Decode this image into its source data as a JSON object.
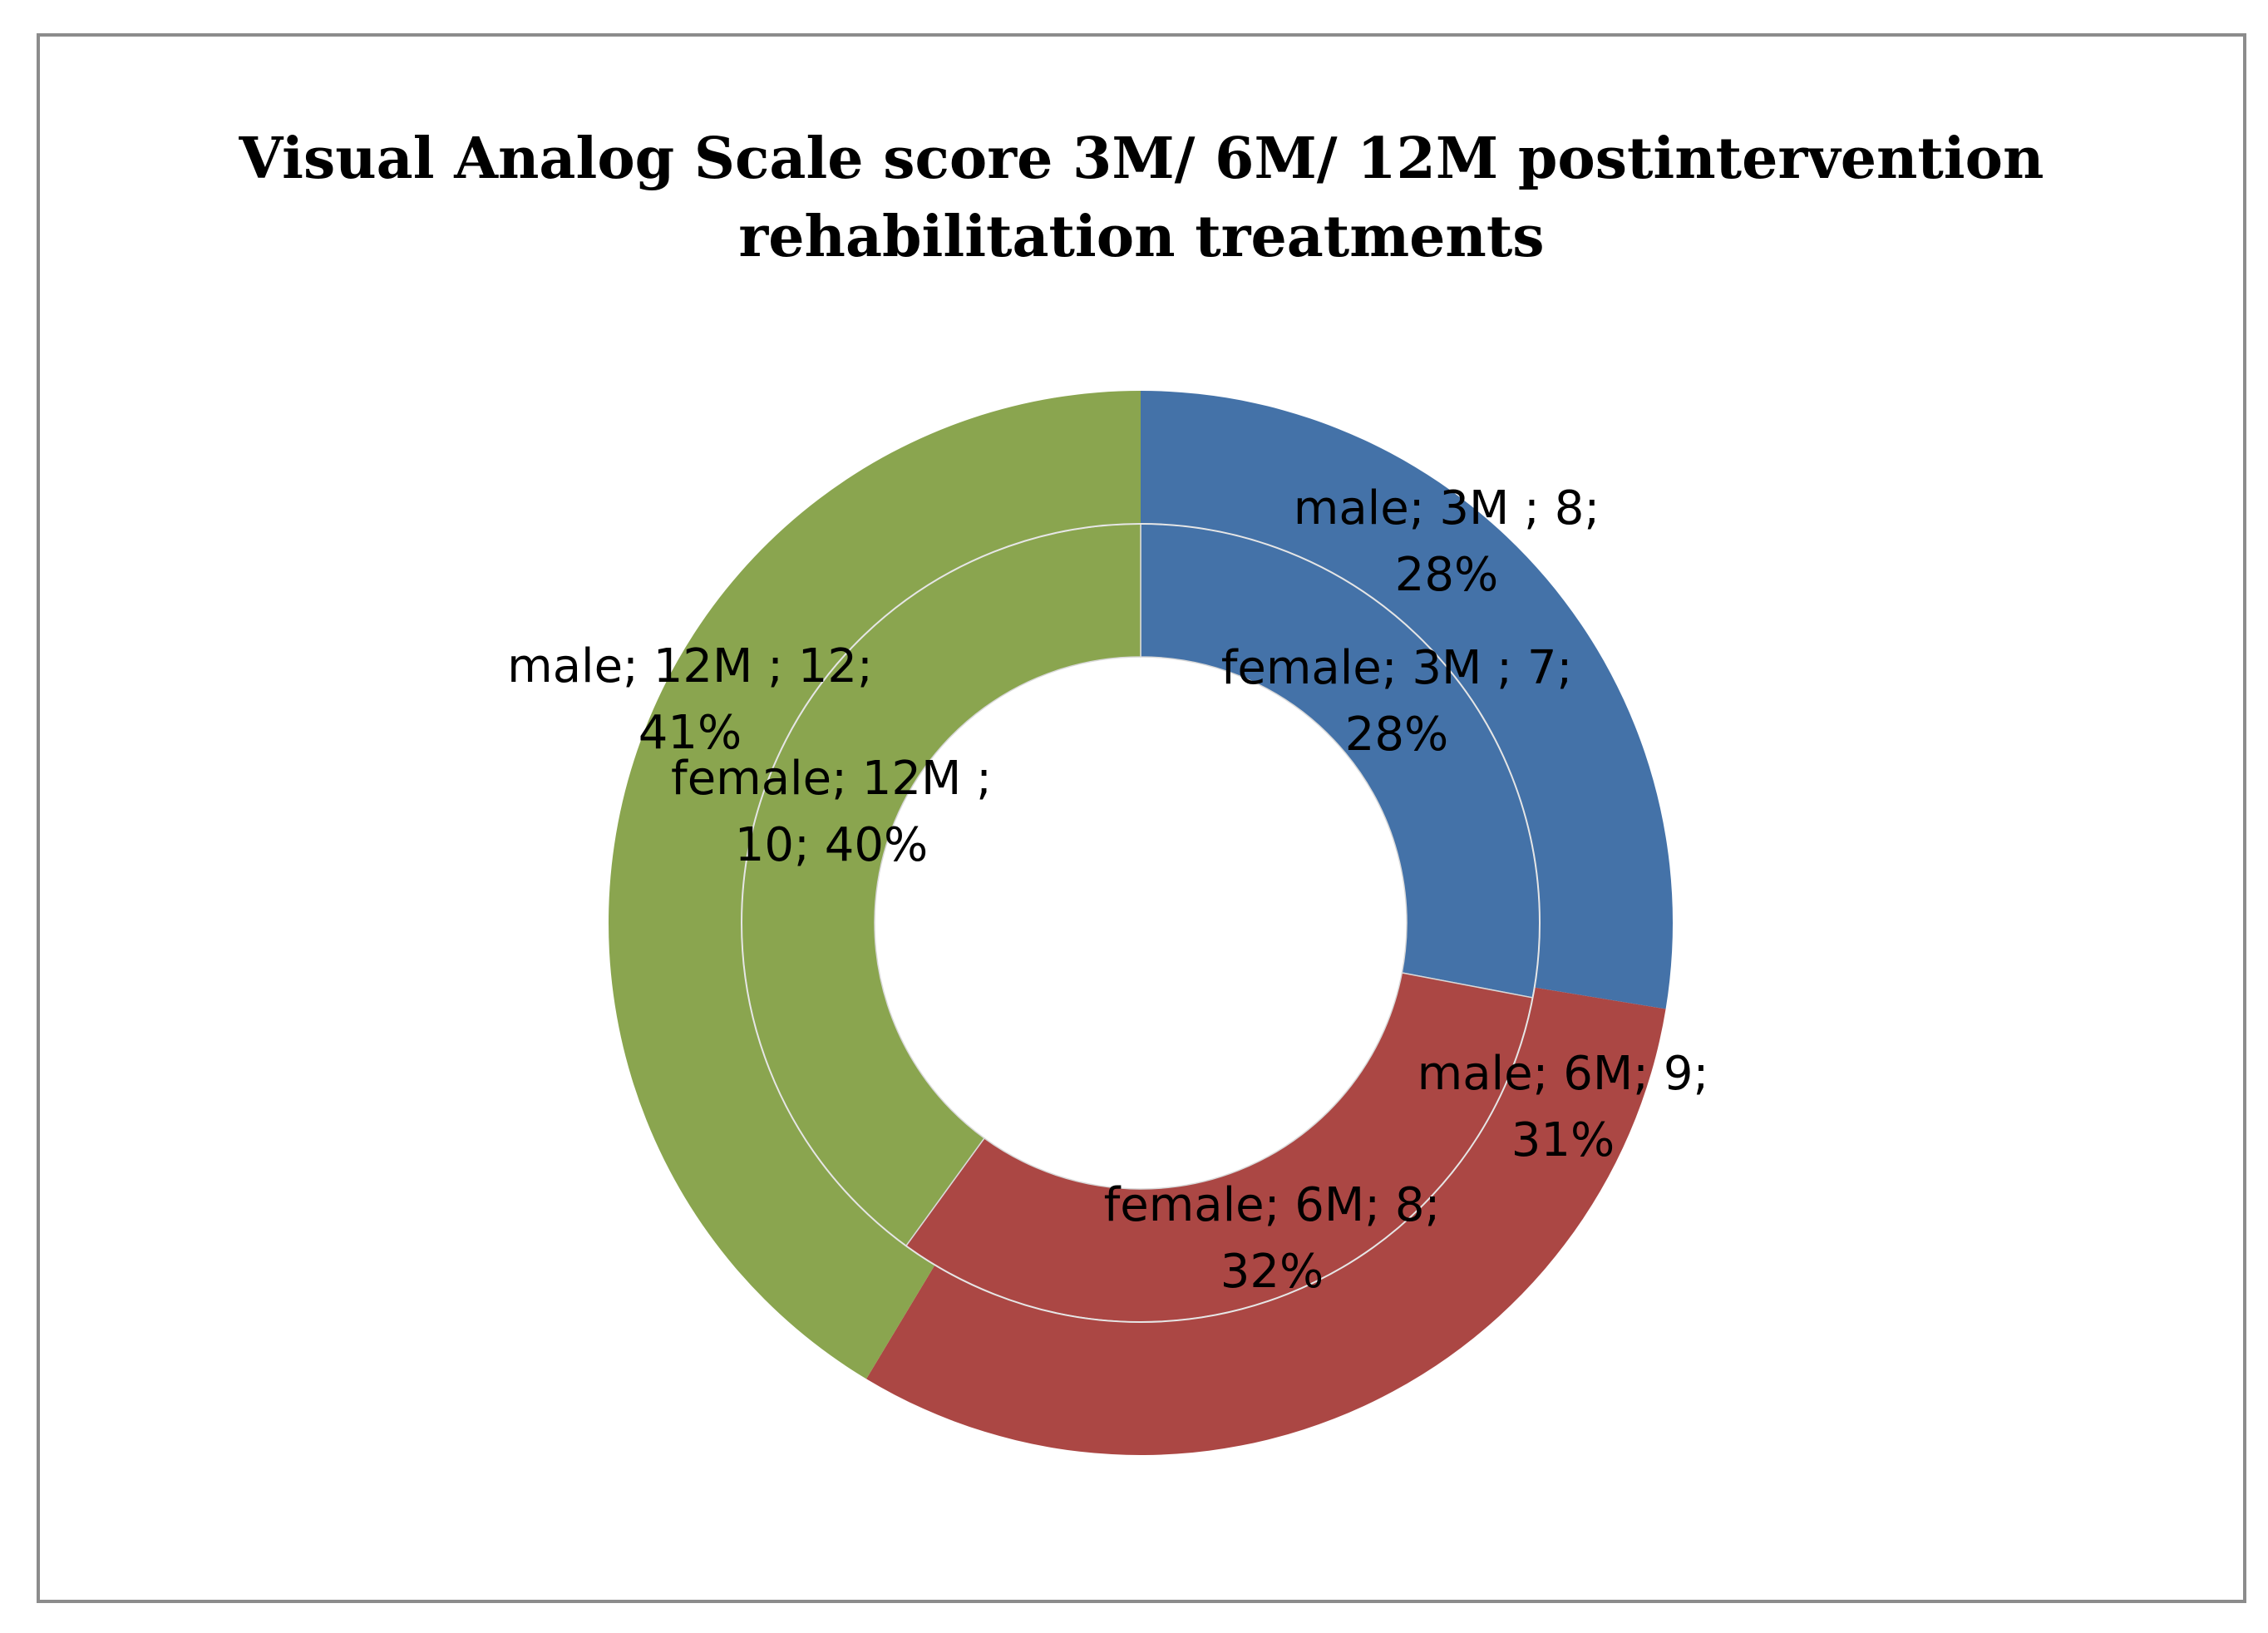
{
  "chart_data": {
    "type": "pie",
    "subtype": "doughnut",
    "title": [
      "Visual Analog Scale score 3M/ 6M/ 12M postintervention",
      "rehabilitation treatments"
    ],
    "categories": [
      "3M",
      "6M",
      "12M"
    ],
    "colors": [
      "#4472a8",
      "#ab4744",
      "#8aa54f"
    ],
    "series": [
      {
        "name": "female",
        "ring": "inner",
        "values": [
          7,
          8,
          10
        ],
        "percent_labels": [
          "28%",
          "32%",
          "40%"
        ],
        "labels": [
          [
            "female; 3M ; 7;",
            "28%"
          ],
          [
            "female; 6M; 8;",
            "32%"
          ],
          [
            "female; 12M ;",
            "10; 40%"
          ]
        ]
      },
      {
        "name": "male",
        "ring": "outer",
        "values": [
          8,
          9,
          12
        ],
        "percent_labels": [
          "28%",
          "31%",
          "41%"
        ],
        "labels": [
          [
            "male; 3M ; 8;",
            "28%"
          ],
          [
            "male; 6M; 9;",
            "31%"
          ],
          [
            "male; 12M ; 12;",
            "41%"
          ]
        ]
      }
    ],
    "legend": "none",
    "grid": false
  }
}
